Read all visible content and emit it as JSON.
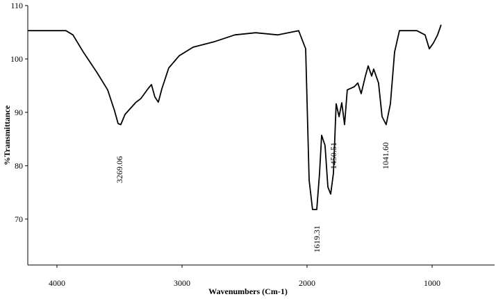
{
  "chart_data": {
    "type": "line",
    "xlabel": "Wavenumbers (Cm-1)",
    "ylabel": "%Transmittance",
    "xlim": [
      4233,
      500
    ],
    "ylim": [
      61.4,
      110
    ],
    "xticks": [
      4000,
      3000,
      2000,
      1000
    ],
    "yticks": [
      70,
      80,
      90,
      100,
      110
    ],
    "series": [
      {
        "color": "#000000",
        "x": [
          4233,
          3928,
          3872,
          3789,
          3678,
          3594,
          3539,
          3511,
          3489,
          3456,
          3372,
          3328,
          3272,
          3244,
          3217,
          3189,
          3161,
          3106,
          3022,
          2911,
          2744,
          2578,
          2411,
          2233,
          2067,
          2011,
          1983,
          1956,
          1922,
          1900,
          1883,
          1856,
          1833,
          1811,
          1789,
          1767,
          1744,
          1722,
          1700,
          1678,
          1622,
          1594,
          1567,
          1533,
          1511,
          1483,
          1467,
          1428,
          1400,
          1367,
          1333,
          1300,
          1261,
          1122,
          1056,
          1022,
          989,
          956,
          928
        ],
        "values": [
          105.3,
          105.3,
          104.5,
          101.3,
          97.4,
          94.2,
          90.3,
          87.9,
          87.7,
          89.6,
          91.8,
          92.6,
          94.4,
          95.2,
          92.9,
          91.9,
          94.4,
          98.3,
          100.6,
          102.2,
          103.2,
          104.5,
          104.9,
          104.5,
          105.3,
          101.9,
          77.3,
          71.8,
          71.8,
          78.6,
          85.7,
          83.8,
          76.0,
          74.7,
          78.6,
          91.6,
          89.2,
          91.8,
          87.7,
          94.2,
          94.8,
          95.5,
          93.5,
          96.8,
          98.7,
          96.8,
          98.1,
          95.5,
          89.2,
          87.7,
          91.6,
          101.3,
          105.3,
          105.3,
          104.5,
          101.9,
          103.0,
          104.5,
          106.4
        ]
      }
    ],
    "annotations": [
      {
        "text": "3269.06",
        "x": 3500,
        "y": 81.8
      },
      {
        "text": "1619.31",
        "x": 1922,
        "y": 68.8
      },
      {
        "text": "1450.51",
        "x": 1789,
        "y": 84.4
      },
      {
        "text": "1041.60",
        "x": 1372,
        "y": 84.4
      }
    ]
  }
}
